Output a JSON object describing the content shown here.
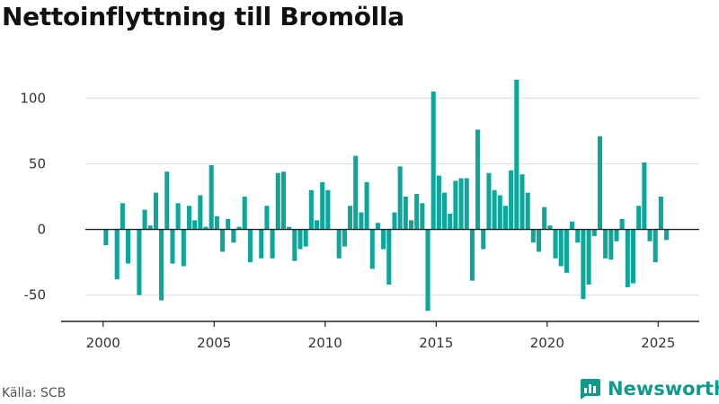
{
  "title": "Nettoinflyttning till Bromölla",
  "source": "Källa: SCB",
  "brand": {
    "name": "Newsworthy",
    "icon": "newsworthy-logo-icon",
    "color": "#0f9a8b"
  },
  "chart_data": {
    "type": "bar",
    "color": "#0ca69a",
    "title": "Nettoinflyttning till Bromölla",
    "xlabel": "",
    "ylabel": "",
    "xlim": [
      1999.2,
      2026.85
    ],
    "ylim": [
      -70,
      120
    ],
    "y_ticks": [
      100,
      50,
      0,
      -50
    ],
    "x_ticks": [
      2000,
      2005,
      2010,
      2015,
      2020,
      2025
    ],
    "grid": "horizontal",
    "legend": "none",
    "series": [
      {
        "values": [
          {
            "x": "2000-03",
            "y": -12
          },
          {
            "x": "2000-06",
            "y": 0
          },
          {
            "x": "2000-09",
            "y": -38
          },
          {
            "x": "2000-12",
            "y": 20
          },
          {
            "x": "2001-03",
            "y": -26
          },
          {
            "x": "2001-06",
            "y": 0
          },
          {
            "x": "2001-09",
            "y": -50
          },
          {
            "x": "2001-12",
            "y": 15
          },
          {
            "x": "2002-03",
            "y": 3
          },
          {
            "x": "2002-06",
            "y": 28
          },
          {
            "x": "2002-09",
            "y": -54
          },
          {
            "x": "2002-12",
            "y": 44
          },
          {
            "x": "2003-03",
            "y": -26
          },
          {
            "x": "2003-06",
            "y": 20
          },
          {
            "x": "2003-09",
            "y": -28
          },
          {
            "x": "2003-12",
            "y": 18
          },
          {
            "x": "2004-03",
            "y": 7
          },
          {
            "x": "2004-06",
            "y": 26
          },
          {
            "x": "2004-09",
            "y": 2
          },
          {
            "x": "2004-12",
            "y": 49
          },
          {
            "x": "2005-03",
            "y": 10
          },
          {
            "x": "2005-06",
            "y": -17
          },
          {
            "x": "2005-09",
            "y": 8
          },
          {
            "x": "2005-12",
            "y": -10
          },
          {
            "x": "2006-03",
            "y": 2
          },
          {
            "x": "2006-06",
            "y": 25
          },
          {
            "x": "2006-09",
            "y": -25
          },
          {
            "x": "2006-12",
            "y": 0
          },
          {
            "x": "2007-03",
            "y": -22
          },
          {
            "x": "2007-06",
            "y": 18
          },
          {
            "x": "2007-09",
            "y": -22
          },
          {
            "x": "2007-12",
            "y": 43
          },
          {
            "x": "2008-03",
            "y": 44
          },
          {
            "x": "2008-06",
            "y": 2
          },
          {
            "x": "2008-09",
            "y": -24
          },
          {
            "x": "2008-12",
            "y": -15
          },
          {
            "x": "2009-03",
            "y": -13
          },
          {
            "x": "2009-06",
            "y": 30
          },
          {
            "x": "2009-09",
            "y": 7
          },
          {
            "x": "2009-12",
            "y": 36
          },
          {
            "x": "2010-03",
            "y": 30
          },
          {
            "x": "2010-06",
            "y": 0
          },
          {
            "x": "2010-09",
            "y": -22
          },
          {
            "x": "2010-12",
            "y": -13
          },
          {
            "x": "2011-03",
            "y": 18
          },
          {
            "x": "2011-06",
            "y": 56
          },
          {
            "x": "2011-09",
            "y": 13
          },
          {
            "x": "2011-12",
            "y": 36
          },
          {
            "x": "2012-03",
            "y": -30
          },
          {
            "x": "2012-06",
            "y": 5
          },
          {
            "x": "2012-09",
            "y": -15
          },
          {
            "x": "2012-12",
            "y": -42
          },
          {
            "x": "2013-03",
            "y": 13
          },
          {
            "x": "2013-06",
            "y": 48
          },
          {
            "x": "2013-09",
            "y": 25
          },
          {
            "x": "2013-12",
            "y": 7
          },
          {
            "x": "2014-03",
            "y": 27
          },
          {
            "x": "2014-06",
            "y": 20
          },
          {
            "x": "2014-09",
            "y": -62
          },
          {
            "x": "2014-12",
            "y": 105
          },
          {
            "x": "2015-03",
            "y": 41
          },
          {
            "x": "2015-06",
            "y": 28
          },
          {
            "x": "2015-09",
            "y": 12
          },
          {
            "x": "2015-12",
            "y": 37
          },
          {
            "x": "2016-03",
            "y": 39
          },
          {
            "x": "2016-06",
            "y": 39
          },
          {
            "x": "2016-09",
            "y": -39
          },
          {
            "x": "2016-12",
            "y": 76
          },
          {
            "x": "2017-03",
            "y": -15
          },
          {
            "x": "2017-06",
            "y": 43
          },
          {
            "x": "2017-09",
            "y": 30
          },
          {
            "x": "2017-12",
            "y": 26
          },
          {
            "x": "2018-03",
            "y": 18
          },
          {
            "x": "2018-06",
            "y": 45
          },
          {
            "x": "2018-09",
            "y": 114
          },
          {
            "x": "2018-12",
            "y": 42
          },
          {
            "x": "2019-03",
            "y": 28
          },
          {
            "x": "2019-06",
            "y": -10
          },
          {
            "x": "2019-09",
            "y": -17
          },
          {
            "x": "2019-12",
            "y": 17
          },
          {
            "x": "2020-03",
            "y": 3
          },
          {
            "x": "2020-06",
            "y": -22
          },
          {
            "x": "2020-09",
            "y": -28
          },
          {
            "x": "2020-12",
            "y": -33
          },
          {
            "x": "2021-03",
            "y": 6
          },
          {
            "x": "2021-06",
            "y": -10
          },
          {
            "x": "2021-09",
            "y": -53
          },
          {
            "x": "2021-12",
            "y": -42
          },
          {
            "x": "2022-03",
            "y": -5
          },
          {
            "x": "2022-06",
            "y": 71
          },
          {
            "x": "2022-09",
            "y": -22
          },
          {
            "x": "2022-12",
            "y": -23
          },
          {
            "x": "2023-03",
            "y": -9
          },
          {
            "x": "2023-06",
            "y": 8
          },
          {
            "x": "2023-09",
            "y": -44
          },
          {
            "x": "2023-12",
            "y": -41
          },
          {
            "x": "2024-03",
            "y": 18
          },
          {
            "x": "2024-06",
            "y": 51
          },
          {
            "x": "2024-09",
            "y": -9
          },
          {
            "x": "2024-12",
            "y": -25
          },
          {
            "x": "2025-03",
            "y": 25
          },
          {
            "x": "2025-06",
            "y": -8
          }
        ]
      }
    ]
  }
}
